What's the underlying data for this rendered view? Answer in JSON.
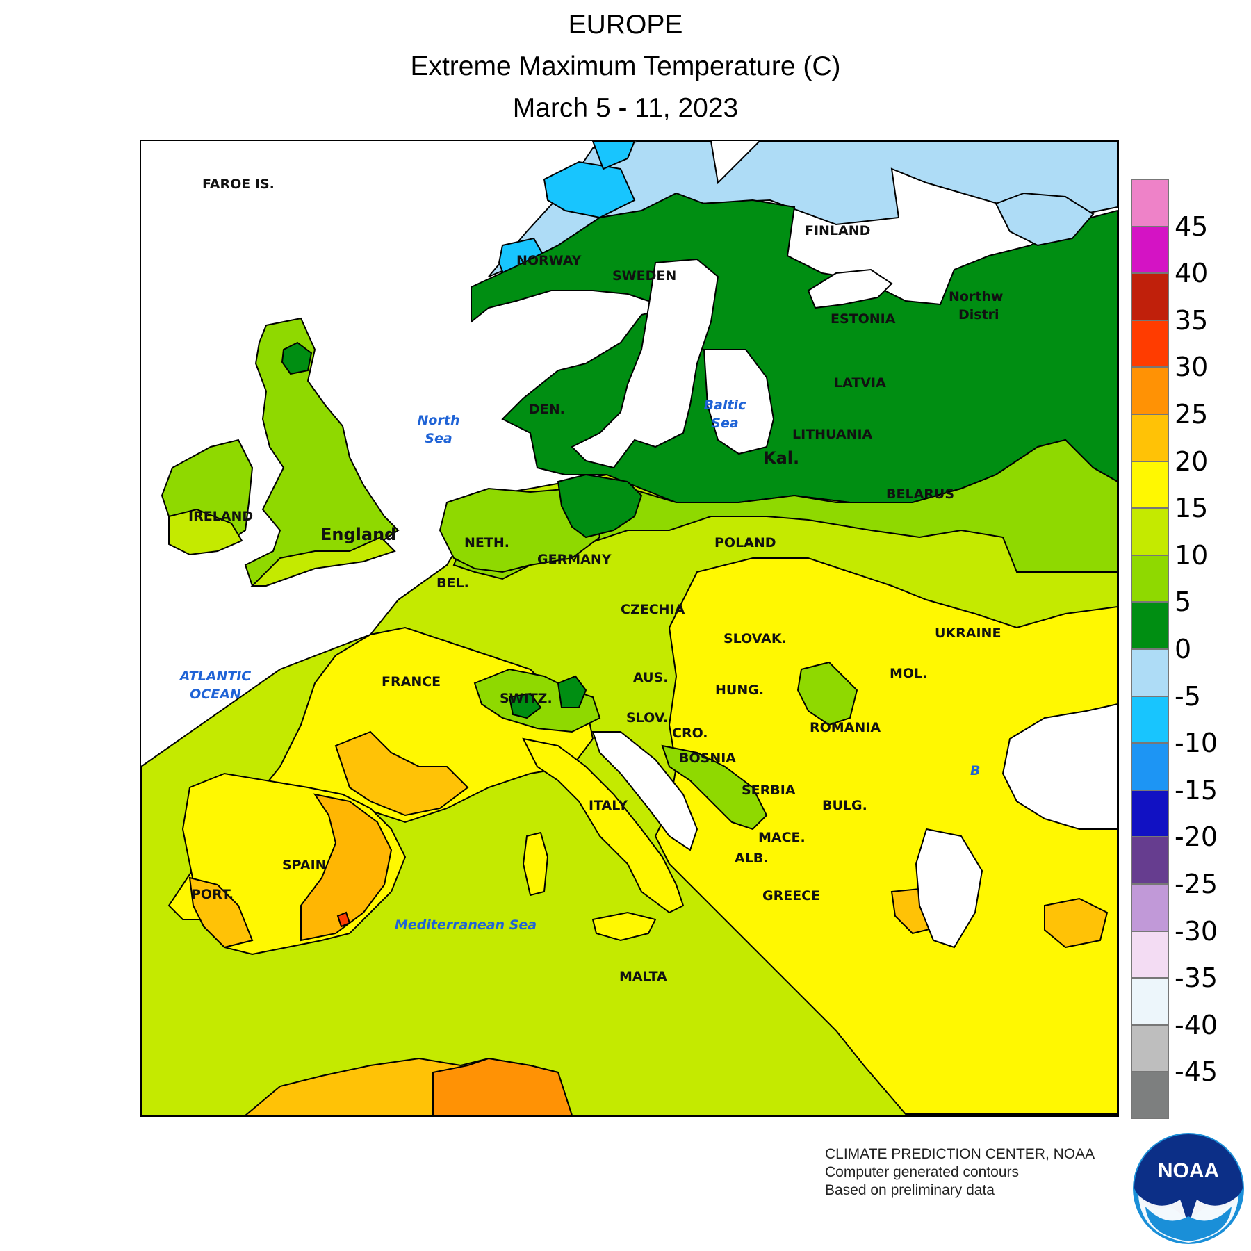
{
  "title": {
    "line1": "EUROPE",
    "line2": "Extreme Maximum Temperature (C)",
    "line3": "March 5 - 11, 2023"
  },
  "labels": {
    "faroe": "FAROE IS.",
    "norway": "NORWAY",
    "sweden": "SWEDEN",
    "finland": "FINLAND",
    "estonia": "ESTONIA",
    "latvia": "LATVIA",
    "lithuania": "LITHUANIA",
    "kal": "Kal.",
    "northwest_1": "Northw",
    "northwest_2": "Distri",
    "denmark": "DEN.",
    "ireland": "IRELAND",
    "england": "England",
    "netherlands": "NETH.",
    "germany": "GERMANY",
    "belgium": "BEL.",
    "poland": "POLAND",
    "belarus": "BELARUS",
    "czechia": "CZECHIA",
    "slovakia": "SLOVAK.",
    "ukraine": "UKRAINE",
    "austria": "AUS.",
    "hungary": "HUNG.",
    "moldova": "MOL.",
    "switzerland": "SWITZ.",
    "france": "FRANCE",
    "slovenia": "SLOV.",
    "croatia": "CRO.",
    "bosnia": "BOSNIA",
    "romania": "ROMANIA",
    "serbia": "SERBIA",
    "bulgaria": "BULG.",
    "italy": "ITALY",
    "macedonia": "MACE.",
    "albania": "ALB.",
    "greece": "GREECE",
    "spain": "SPAIN",
    "portugal": "PORT.",
    "malta": "MALTA",
    "black_sea_partial": "B"
  },
  "seas": {
    "north_1": "North",
    "north_2": "Sea",
    "baltic_1": "Baltic",
    "baltic_2": "Sea",
    "atlantic_1": "ATLANTIC",
    "atlantic_2": "OCEAN",
    "mediterranean": "Mediterranean Sea"
  },
  "legend": {
    "unit": "C",
    "bins": [
      {
        "color": "#ee82c8"
      },
      {
        "color": "#d413c4"
      },
      {
        "color": "#c0200b"
      },
      {
        "color": "#ff3c00"
      },
      {
        "color": "#ff9205"
      },
      {
        "color": "#ffc206"
      },
      {
        "color": "#fff801"
      },
      {
        "color": "#c4ea00"
      },
      {
        "color": "#8fd900"
      },
      {
        "color": "#008e12"
      },
      {
        "color": "#aedcf6"
      },
      {
        "color": "#18c5fe"
      },
      {
        "color": "#1d95f4"
      },
      {
        "color": "#1111c3"
      },
      {
        "color": "#663d8f"
      },
      {
        "color": "#c199d8"
      },
      {
        "color": "#f3dcf3"
      },
      {
        "color": "#edf6fb"
      },
      {
        "color": "#bebebe"
      },
      {
        "color": "#7d7f7f"
      }
    ],
    "ticks": [
      "45",
      "40",
      "35",
      "30",
      "25",
      "20",
      "15",
      "10",
      "5",
      "0",
      "-5",
      "-10",
      "-15",
      "-20",
      "-25",
      "-30",
      "-35",
      "-40",
      "-45"
    ]
  },
  "credits": {
    "line1": "CLIMATE PREDICTION CENTER, NOAA",
    "line2": "Computer generated contours",
    "line3": "Based on preliminary data"
  },
  "logo": {
    "text": "NOAA"
  }
}
